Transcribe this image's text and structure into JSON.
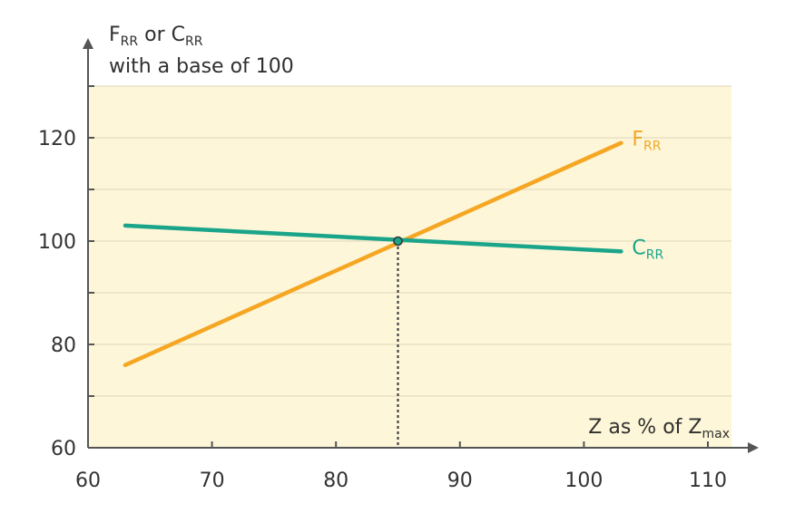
{
  "chart_data": {
    "type": "line",
    "y_axis_title": {
      "line1_a": "F",
      "line1_a_sub": "RR",
      "line1_b": " or ",
      "line1_c": "C",
      "line1_c_sub": "RR",
      "line2": "with a base of 100"
    },
    "x_axis_title": {
      "main": "Z as % of ",
      "z": "Z",
      "z_sub": "max"
    },
    "xlim": [
      60,
      110
    ],
    "ylim": [
      60,
      130
    ],
    "x_ticks": [
      60,
      70,
      80,
      90,
      100,
      110
    ],
    "y_ticks": [
      60,
      80,
      100,
      120
    ],
    "x_tick_labels": [
      "60",
      "70",
      "80",
      "90",
      "100",
      "110"
    ],
    "y_tick_labels": [
      "60",
      "80",
      "100",
      "120"
    ],
    "grid": "horizontal",
    "plot_background": "#fdf6d8",
    "series": [
      {
        "name": "F",
        "name_sub": "RR",
        "color": "#f5a623",
        "points": [
          [
            63,
            76
          ],
          [
            103,
            119
          ]
        ]
      },
      {
        "name": "C",
        "name_sub": "RR",
        "color": "#1aa58a",
        "points": [
          [
            63,
            103
          ],
          [
            103,
            98
          ]
        ]
      }
    ],
    "intersection": {
      "x": 85,
      "y": 100
    }
  }
}
